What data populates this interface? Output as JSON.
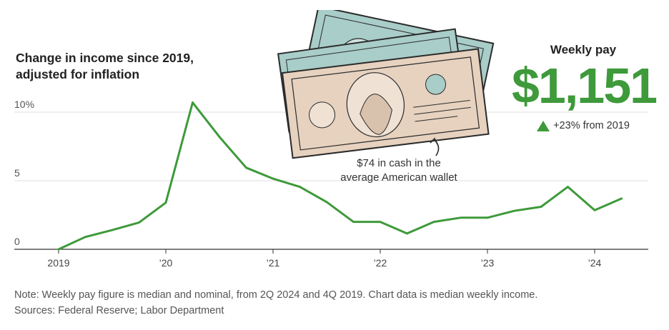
{
  "chart_data": {
    "type": "line",
    "title_lines": [
      "Change in income since 2019,",
      "adjusted for inflation"
    ],
    "ylabel": "",
    "xlabel": "",
    "ylim": [
      0,
      10
    ],
    "y_ticks": [
      {
        "value": 10,
        "label": "10%"
      },
      {
        "value": 5,
        "label": "5"
      },
      {
        "value": 0,
        "label": "0"
      }
    ],
    "x_range": [
      2019.0,
      2024.5
    ],
    "x_ticks": [
      {
        "value": 2019,
        "label": "2019"
      },
      {
        "value": 2020,
        "label": "’20"
      },
      {
        "value": 2021,
        "label": "’21"
      },
      {
        "value": 2022,
        "label": "’22"
      },
      {
        "value": 2023,
        "label": "’23"
      },
      {
        "value": 2024,
        "label": "’24"
      }
    ],
    "grid": "horizontal",
    "series": [
      {
        "color": "#3e9a3a",
        "x": [
          2019.0,
          2019.25,
          2019.5,
          2019.75,
          2020.0,
          2020.25,
          2020.5,
          2020.75,
          2021.0,
          2021.25,
          2021.5,
          2021.75,
          2022.0,
          2022.25,
          2022.5,
          2022.75,
          2023.0,
          2023.25,
          2023.5,
          2023.75,
          2024.0,
          2024.25
        ],
        "y": [
          0.0,
          0.9,
          1.4,
          1.95,
          3.4,
          10.7,
          8.2,
          5.95,
          5.15,
          4.55,
          3.45,
          2.0,
          2.0,
          1.15,
          2.0,
          2.3,
          2.3,
          2.8,
          3.1,
          4.55,
          2.85,
          3.7
        ]
      }
    ]
  },
  "callout": {
    "caption_lines": [
      "$74 in cash in the",
      "average American wallet"
    ]
  },
  "kpi": {
    "label": "Weekly pay",
    "value": "$1,151",
    "change": "+23% from 2019"
  },
  "footnotes": {
    "note": "Note: Weekly pay figure is median and nominal, from 2Q 2024 and 4Q 2019. Chart data is median weekly income.",
    "sources": "Sources: Federal Reserve; Labor Department"
  },
  "colors": {
    "accent": "#3e9a3a",
    "bill_green": "#a9cdc8",
    "bill_tan": "#e6d2bf"
  }
}
